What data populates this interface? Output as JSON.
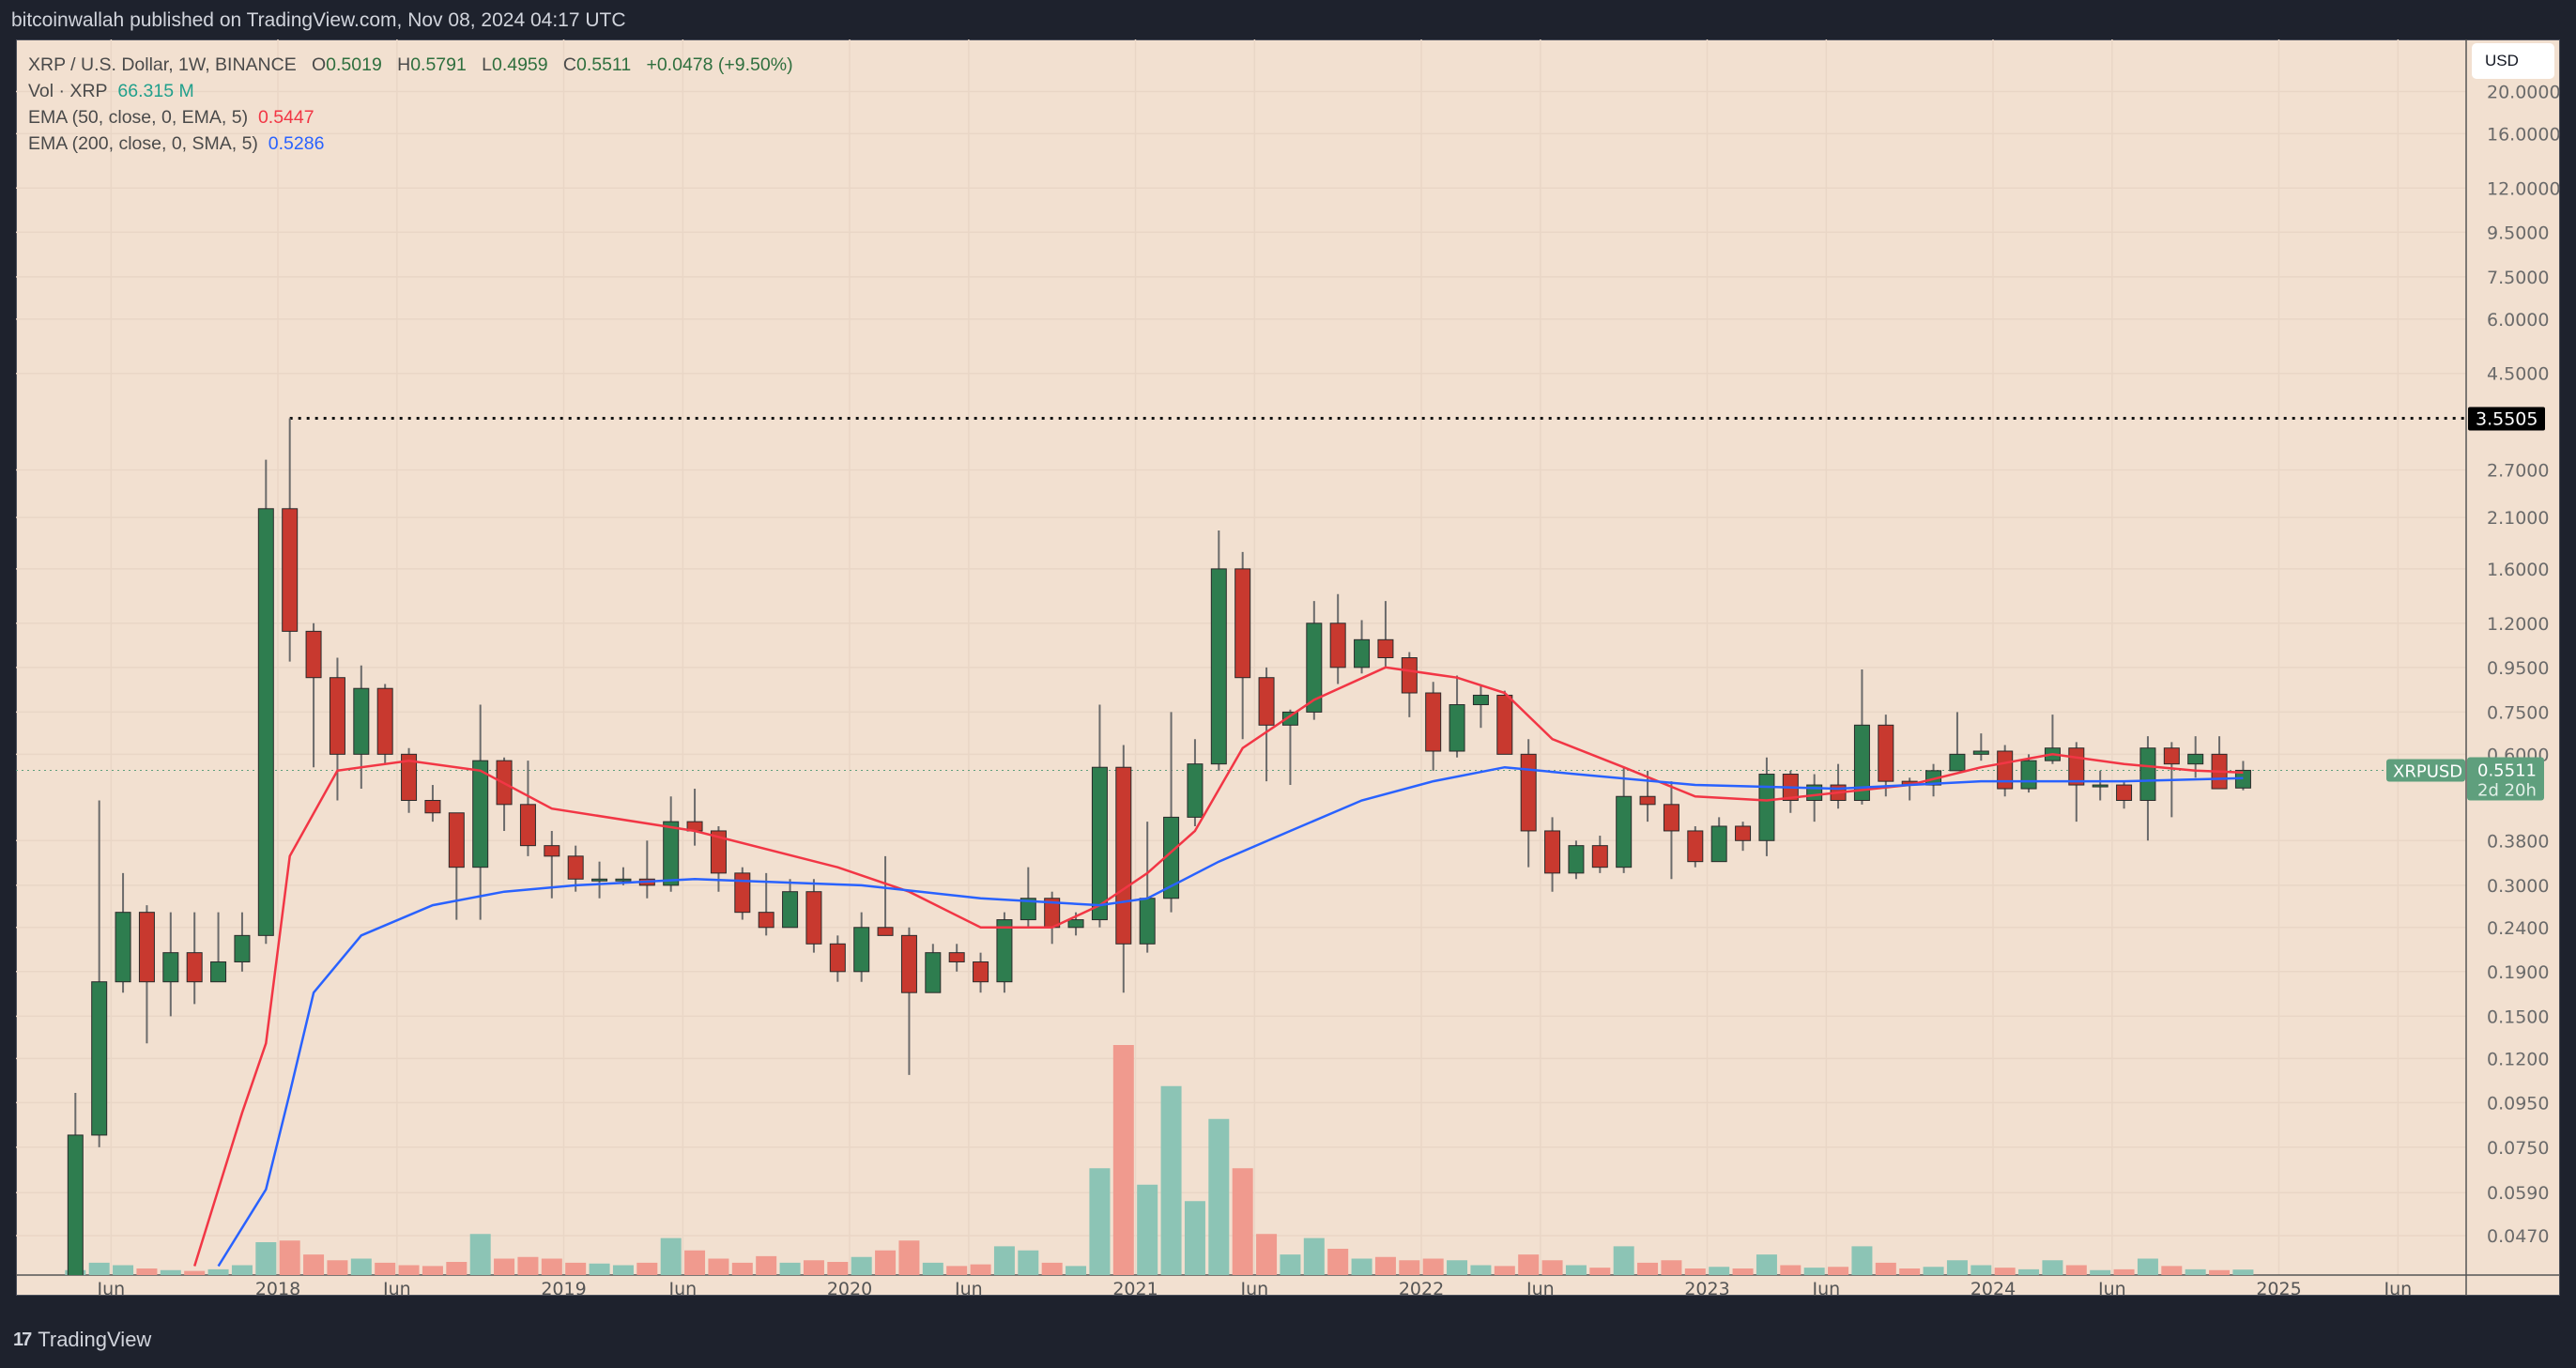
{
  "header": {
    "published": "bitcoinwallah published on TradingView.com, Nov 08, 2024 04:17 UTC"
  },
  "legend": {
    "symbol": "XRP / U.S. Dollar, 1W, BINANCE",
    "open_label": "O",
    "open": "0.5019",
    "high_label": "H",
    "high": "0.5791",
    "low_label": "L",
    "low": "0.4959",
    "close_label": "C",
    "close": "0.5511",
    "change": "+0.0478 (+9.50%)",
    "vol_label": "Vol · XRP",
    "vol_value": "66.315 M",
    "ema50_label": "EMA (50, close, 0, EMA, 5)",
    "ema50_value": "0.5447",
    "ema200_label": "EMA (200, close, 0, SMA, 5)",
    "ema200_value": "0.5286"
  },
  "currency_button": "USD",
  "footer": {
    "brand": "TradingView",
    "logo_mark": "17"
  },
  "colors": {
    "background": "#f2e0d0",
    "up": "#2e7d4f",
    "down": "#c8392f",
    "vol_up": "#8cc4b5",
    "vol_down": "#f09a8e",
    "ema50": "#f23645",
    "ema200": "#2962ff",
    "last_price": "#5f9f7d"
  },
  "chart_data": {
    "type": "candlestick",
    "scale": "log",
    "grid": true,
    "ylim": [
      0.04,
      21
    ],
    "y_ticks": [
      "20.0000",
      "16.0000",
      "12.0000",
      "9.5000",
      "7.5000",
      "6.0000",
      "4.5000",
      "2.7000",
      "2.1000",
      "1.6000",
      "1.2000",
      "0.9500",
      "0.7500",
      "0.6000",
      "0.3800",
      "0.3000",
      "0.2400",
      "0.1900",
      "0.1500",
      "0.1200",
      "0.0950",
      "0.0750",
      "0.0590",
      "0.0470"
    ],
    "x_ticks": [
      {
        "label": "Jun",
        "date": "2017-06"
      },
      {
        "label": "2018",
        "date": "2018-01"
      },
      {
        "label": "Jun",
        "date": "2018-06"
      },
      {
        "label": "2019",
        "date": "2019-01"
      },
      {
        "label": "Jun",
        "date": "2019-06"
      },
      {
        "label": "2020",
        "date": "2020-01"
      },
      {
        "label": "Jun",
        "date": "2020-06"
      },
      {
        "label": "2021",
        "date": "2021-01"
      },
      {
        "label": "Jun",
        "date": "2021-06"
      },
      {
        "label": "2022",
        "date": "2022-01"
      },
      {
        "label": "Jun",
        "date": "2022-06"
      },
      {
        "label": "2023",
        "date": "2023-01"
      },
      {
        "label": "Jun",
        "date": "2023-06"
      },
      {
        "label": "2024",
        "date": "2024-01"
      },
      {
        "label": "Jun",
        "date": "2024-06"
      },
      {
        "label": "2025",
        "date": "2025-01"
      },
      {
        "label": "Jun",
        "date": "2025-06"
      }
    ],
    "candle_fields": [
      "date",
      "open",
      "high",
      "low",
      "close",
      "volume_M"
    ],
    "candles": [
      [
        "2017-04",
        0.03,
        0.1,
        0.028,
        0.08,
        60
      ],
      [
        "2017-05",
        0.08,
        0.47,
        0.075,
        0.18,
        150
      ],
      [
        "2017-06",
        0.18,
        0.32,
        0.17,
        0.26,
        120
      ],
      [
        "2017-07",
        0.26,
        0.27,
        0.13,
        0.18,
        80
      ],
      [
        "2017-08",
        0.18,
        0.26,
        0.15,
        0.21,
        60
      ],
      [
        "2017-09",
        0.21,
        0.26,
        0.16,
        0.18,
        50
      ],
      [
        "2017-10",
        0.18,
        0.26,
        0.18,
        0.2,
        70
      ],
      [
        "2017-11",
        0.2,
        0.26,
        0.19,
        0.23,
        120
      ],
      [
        "2017-12",
        0.23,
        2.85,
        0.22,
        2.2,
        400
      ],
      [
        "2018-01",
        2.2,
        3.5505,
        0.98,
        1.15,
        420
      ],
      [
        "2018-02",
        1.15,
        1.2,
        0.56,
        0.9,
        250
      ],
      [
        "2018-03",
        0.9,
        1.0,
        0.47,
        0.6,
        180
      ],
      [
        "2018-04",
        0.6,
        0.96,
        0.5,
        0.85,
        200
      ],
      [
        "2018-05",
        0.85,
        0.87,
        0.57,
        0.6,
        150
      ],
      [
        "2018-06",
        0.6,
        0.62,
        0.44,
        0.47,
        120
      ],
      [
        "2018-07",
        0.47,
        0.51,
        0.42,
        0.44,
        110
      ],
      [
        "2018-08",
        0.44,
        0.44,
        0.25,
        0.33,
        160
      ],
      [
        "2018-09",
        0.33,
        0.78,
        0.25,
        0.58,
        500
      ],
      [
        "2018-10",
        0.58,
        0.59,
        0.4,
        0.46,
        200
      ],
      [
        "2018-11",
        0.46,
        0.58,
        0.35,
        0.37,
        220
      ],
      [
        "2018-12",
        0.37,
        0.4,
        0.28,
        0.35,
        200
      ],
      [
        "2019-01",
        0.35,
        0.37,
        0.29,
        0.31,
        150
      ],
      [
        "2019-02",
        0.31,
        0.34,
        0.28,
        0.31,
        140
      ],
      [
        "2019-03",
        0.31,
        0.33,
        0.3,
        0.31,
        120
      ],
      [
        "2019-04",
        0.31,
        0.38,
        0.28,
        0.3,
        150
      ],
      [
        "2019-05",
        0.3,
        0.48,
        0.29,
        0.42,
        450
      ],
      [
        "2019-06",
        0.42,
        0.5,
        0.37,
        0.4,
        300
      ],
      [
        "2019-07",
        0.4,
        0.41,
        0.29,
        0.32,
        200
      ],
      [
        "2019-08",
        0.32,
        0.33,
        0.25,
        0.26,
        150
      ],
      [
        "2019-09",
        0.26,
        0.32,
        0.23,
        0.24,
        230
      ],
      [
        "2019-10",
        0.24,
        0.31,
        0.24,
        0.29,
        150
      ],
      [
        "2019-11",
        0.29,
        0.31,
        0.21,
        0.22,
        180
      ],
      [
        "2019-12",
        0.22,
        0.23,
        0.18,
        0.19,
        160
      ],
      [
        "2020-01",
        0.19,
        0.26,
        0.18,
        0.24,
        220
      ],
      [
        "2020-02",
        0.24,
        0.35,
        0.23,
        0.23,
        300
      ],
      [
        "2020-03",
        0.23,
        0.24,
        0.11,
        0.17,
        420
      ],
      [
        "2020-04",
        0.17,
        0.22,
        0.17,
        0.21,
        150
      ],
      [
        "2020-05",
        0.21,
        0.22,
        0.19,
        0.2,
        110
      ],
      [
        "2020-06",
        0.2,
        0.21,
        0.17,
        0.18,
        130
      ],
      [
        "2020-07",
        0.18,
        0.26,
        0.17,
        0.25,
        350
      ],
      [
        "2020-08",
        0.25,
        0.33,
        0.24,
        0.28,
        300
      ],
      [
        "2020-09",
        0.28,
        0.29,
        0.22,
        0.24,
        150
      ],
      [
        "2020-10",
        0.24,
        0.26,
        0.23,
        0.25,
        110
      ],
      [
        "2020-11",
        0.25,
        0.78,
        0.24,
        0.56,
        1300
      ],
      [
        "2020-12",
        0.56,
        0.63,
        0.17,
        0.22,
        2800
      ],
      [
        "2021-01",
        0.22,
        0.42,
        0.21,
        0.28,
        1100
      ],
      [
        "2021-02",
        0.28,
        0.75,
        0.26,
        0.43,
        2300
      ],
      [
        "2021-03",
        0.43,
        0.65,
        0.41,
        0.57,
        900
      ],
      [
        "2021-04",
        0.57,
        1.96,
        0.55,
        1.6,
        1900
      ],
      [
        "2021-05",
        1.6,
        1.75,
        0.65,
        0.9,
        1300
      ],
      [
        "2021-06",
        0.9,
        0.95,
        0.52,
        0.7,
        500
      ],
      [
        "2021-07",
        0.7,
        0.76,
        0.51,
        0.75,
        250
      ],
      [
        "2021-08",
        0.75,
        1.35,
        0.72,
        1.2,
        450
      ],
      [
        "2021-09",
        1.2,
        1.4,
        0.87,
        0.95,
        320
      ],
      [
        "2021-10",
        0.95,
        1.22,
        0.92,
        1.1,
        200
      ],
      [
        "2021-11",
        1.1,
        1.35,
        0.95,
        1.0,
        220
      ],
      [
        "2021-12",
        1.0,
        1.03,
        0.73,
        0.83,
        180
      ],
      [
        "2022-01",
        0.83,
        0.88,
        0.55,
        0.61,
        200
      ],
      [
        "2022-02",
        0.61,
        0.91,
        0.59,
        0.78,
        180
      ],
      [
        "2022-03",
        0.78,
        0.86,
        0.69,
        0.82,
        120
      ],
      [
        "2022-04",
        0.82,
        0.84,
        0.6,
        0.6,
        110
      ],
      [
        "2022-05",
        0.6,
        0.65,
        0.33,
        0.4,
        250
      ],
      [
        "2022-06",
        0.4,
        0.43,
        0.29,
        0.32,
        180
      ],
      [
        "2022-07",
        0.32,
        0.38,
        0.31,
        0.37,
        120
      ],
      [
        "2022-08",
        0.37,
        0.39,
        0.32,
        0.33,
        90
      ],
      [
        "2022-09",
        0.33,
        0.56,
        0.32,
        0.48,
        350
      ],
      [
        "2022-10",
        0.48,
        0.55,
        0.42,
        0.46,
        150
      ],
      [
        "2022-11",
        0.46,
        0.52,
        0.31,
        0.4,
        180
      ],
      [
        "2022-12",
        0.4,
        0.41,
        0.33,
        0.34,
        80
      ],
      [
        "2023-01",
        0.34,
        0.43,
        0.34,
        0.41,
        100
      ],
      [
        "2023-02",
        0.41,
        0.42,
        0.36,
        0.38,
        80
      ],
      [
        "2023-03",
        0.38,
        0.59,
        0.35,
        0.54,
        250
      ],
      [
        "2023-04",
        0.54,
        0.55,
        0.44,
        0.47,
        120
      ],
      [
        "2023-05",
        0.47,
        0.54,
        0.42,
        0.51,
        90
      ],
      [
        "2023-06",
        0.51,
        0.57,
        0.45,
        0.47,
        100
      ],
      [
        "2023-07",
        0.47,
        0.94,
        0.46,
        0.7,
        350
      ],
      [
        "2023-08",
        0.7,
        0.74,
        0.48,
        0.52,
        150
      ],
      [
        "2023-09",
        0.52,
        0.53,
        0.47,
        0.51,
        80
      ],
      [
        "2023-10",
        0.51,
        0.57,
        0.48,
        0.55,
        100
      ],
      [
        "2023-11",
        0.55,
        0.75,
        0.55,
        0.6,
        180
      ],
      [
        "2023-12",
        0.6,
        0.67,
        0.58,
        0.61,
        120
      ],
      [
        "2024-01",
        0.61,
        0.63,
        0.48,
        0.5,
        90
      ],
      [
        "2024-02",
        0.5,
        0.6,
        0.49,
        0.58,
        70
      ],
      [
        "2024-03",
        0.58,
        0.74,
        0.57,
        0.62,
        180
      ],
      [
        "2024-04",
        0.62,
        0.64,
        0.42,
        0.51,
        120
      ],
      [
        "2024-05",
        0.51,
        0.55,
        0.47,
        0.51,
        60
      ],
      [
        "2024-06",
        0.51,
        0.52,
        0.45,
        0.47,
        70
      ],
      [
        "2024-07",
        0.47,
        0.66,
        0.38,
        0.62,
        200
      ],
      [
        "2024-08",
        0.62,
        0.64,
        0.43,
        0.57,
        110
      ],
      [
        "2024-09",
        0.57,
        0.66,
        0.53,
        0.6,
        70
      ],
      [
        "2024-10",
        0.6,
        0.66,
        0.5,
        0.5,
        60
      ],
      [
        "2024-11",
        0.5019,
        0.5791,
        0.4959,
        0.5511,
        66.315
      ]
    ],
    "series": [
      {
        "name": "EMA (50, close, 0, EMA, 5)",
        "color": "#f23645",
        "points": [
          [
            "2017-09",
            0.04
          ],
          [
            "2017-11",
            0.09
          ],
          [
            "2017-12",
            0.13
          ],
          [
            "2018-01",
            0.35
          ],
          [
            "2018-03",
            0.55
          ],
          [
            "2018-06",
            0.58
          ],
          [
            "2018-09",
            0.55
          ],
          [
            "2018-12",
            0.45
          ],
          [
            "2019-06",
            0.4
          ],
          [
            "2019-12",
            0.33
          ],
          [
            "2020-03",
            0.29
          ],
          [
            "2020-06",
            0.24
          ],
          [
            "2020-09",
            0.24
          ],
          [
            "2020-11",
            0.27
          ],
          [
            "2021-01",
            0.32
          ],
          [
            "2021-03",
            0.4
          ],
          [
            "2021-05",
            0.62
          ],
          [
            "2021-08",
            0.8
          ],
          [
            "2021-11",
            0.95
          ],
          [
            "2022-02",
            0.9
          ],
          [
            "2022-04",
            0.83
          ],
          [
            "2022-06",
            0.65
          ],
          [
            "2022-09",
            0.56
          ],
          [
            "2022-12",
            0.48
          ],
          [
            "2023-03",
            0.47
          ],
          [
            "2023-06",
            0.49
          ],
          [
            "2023-09",
            0.51
          ],
          [
            "2023-12",
            0.56
          ],
          [
            "2024-03",
            0.6
          ],
          [
            "2024-06",
            0.57
          ],
          [
            "2024-09",
            0.55
          ],
          [
            "2024-11",
            0.5447
          ]
        ]
      },
      {
        "name": "EMA (200, close, 0, SMA, 5)",
        "color": "#2962ff",
        "points": [
          [
            "2017-10",
            0.04
          ],
          [
            "2017-12",
            0.06
          ],
          [
            "2018-01",
            0.1
          ],
          [
            "2018-02",
            0.17
          ],
          [
            "2018-04",
            0.23
          ],
          [
            "2018-07",
            0.27
          ],
          [
            "2018-10",
            0.29
          ],
          [
            "2019-01",
            0.3
          ],
          [
            "2019-06",
            0.31
          ],
          [
            "2020-01",
            0.3
          ],
          [
            "2020-06",
            0.28
          ],
          [
            "2020-11",
            0.27
          ],
          [
            "2021-01",
            0.28
          ],
          [
            "2021-04",
            0.34
          ],
          [
            "2021-07",
            0.4
          ],
          [
            "2021-10",
            0.47
          ],
          [
            "2022-01",
            0.52
          ],
          [
            "2022-04",
            0.56
          ],
          [
            "2022-07",
            0.54
          ],
          [
            "2022-12",
            0.51
          ],
          [
            "2023-06",
            0.5
          ],
          [
            "2023-12",
            0.52
          ],
          [
            "2024-06",
            0.52
          ],
          [
            "2024-11",
            0.5286
          ]
        ]
      }
    ],
    "ath_line": {
      "value": "3.5505",
      "from": "2018-01"
    },
    "last_price": {
      "symbol": "XRPUSD",
      "value": "0.5511",
      "countdown": "2d 20h"
    }
  }
}
